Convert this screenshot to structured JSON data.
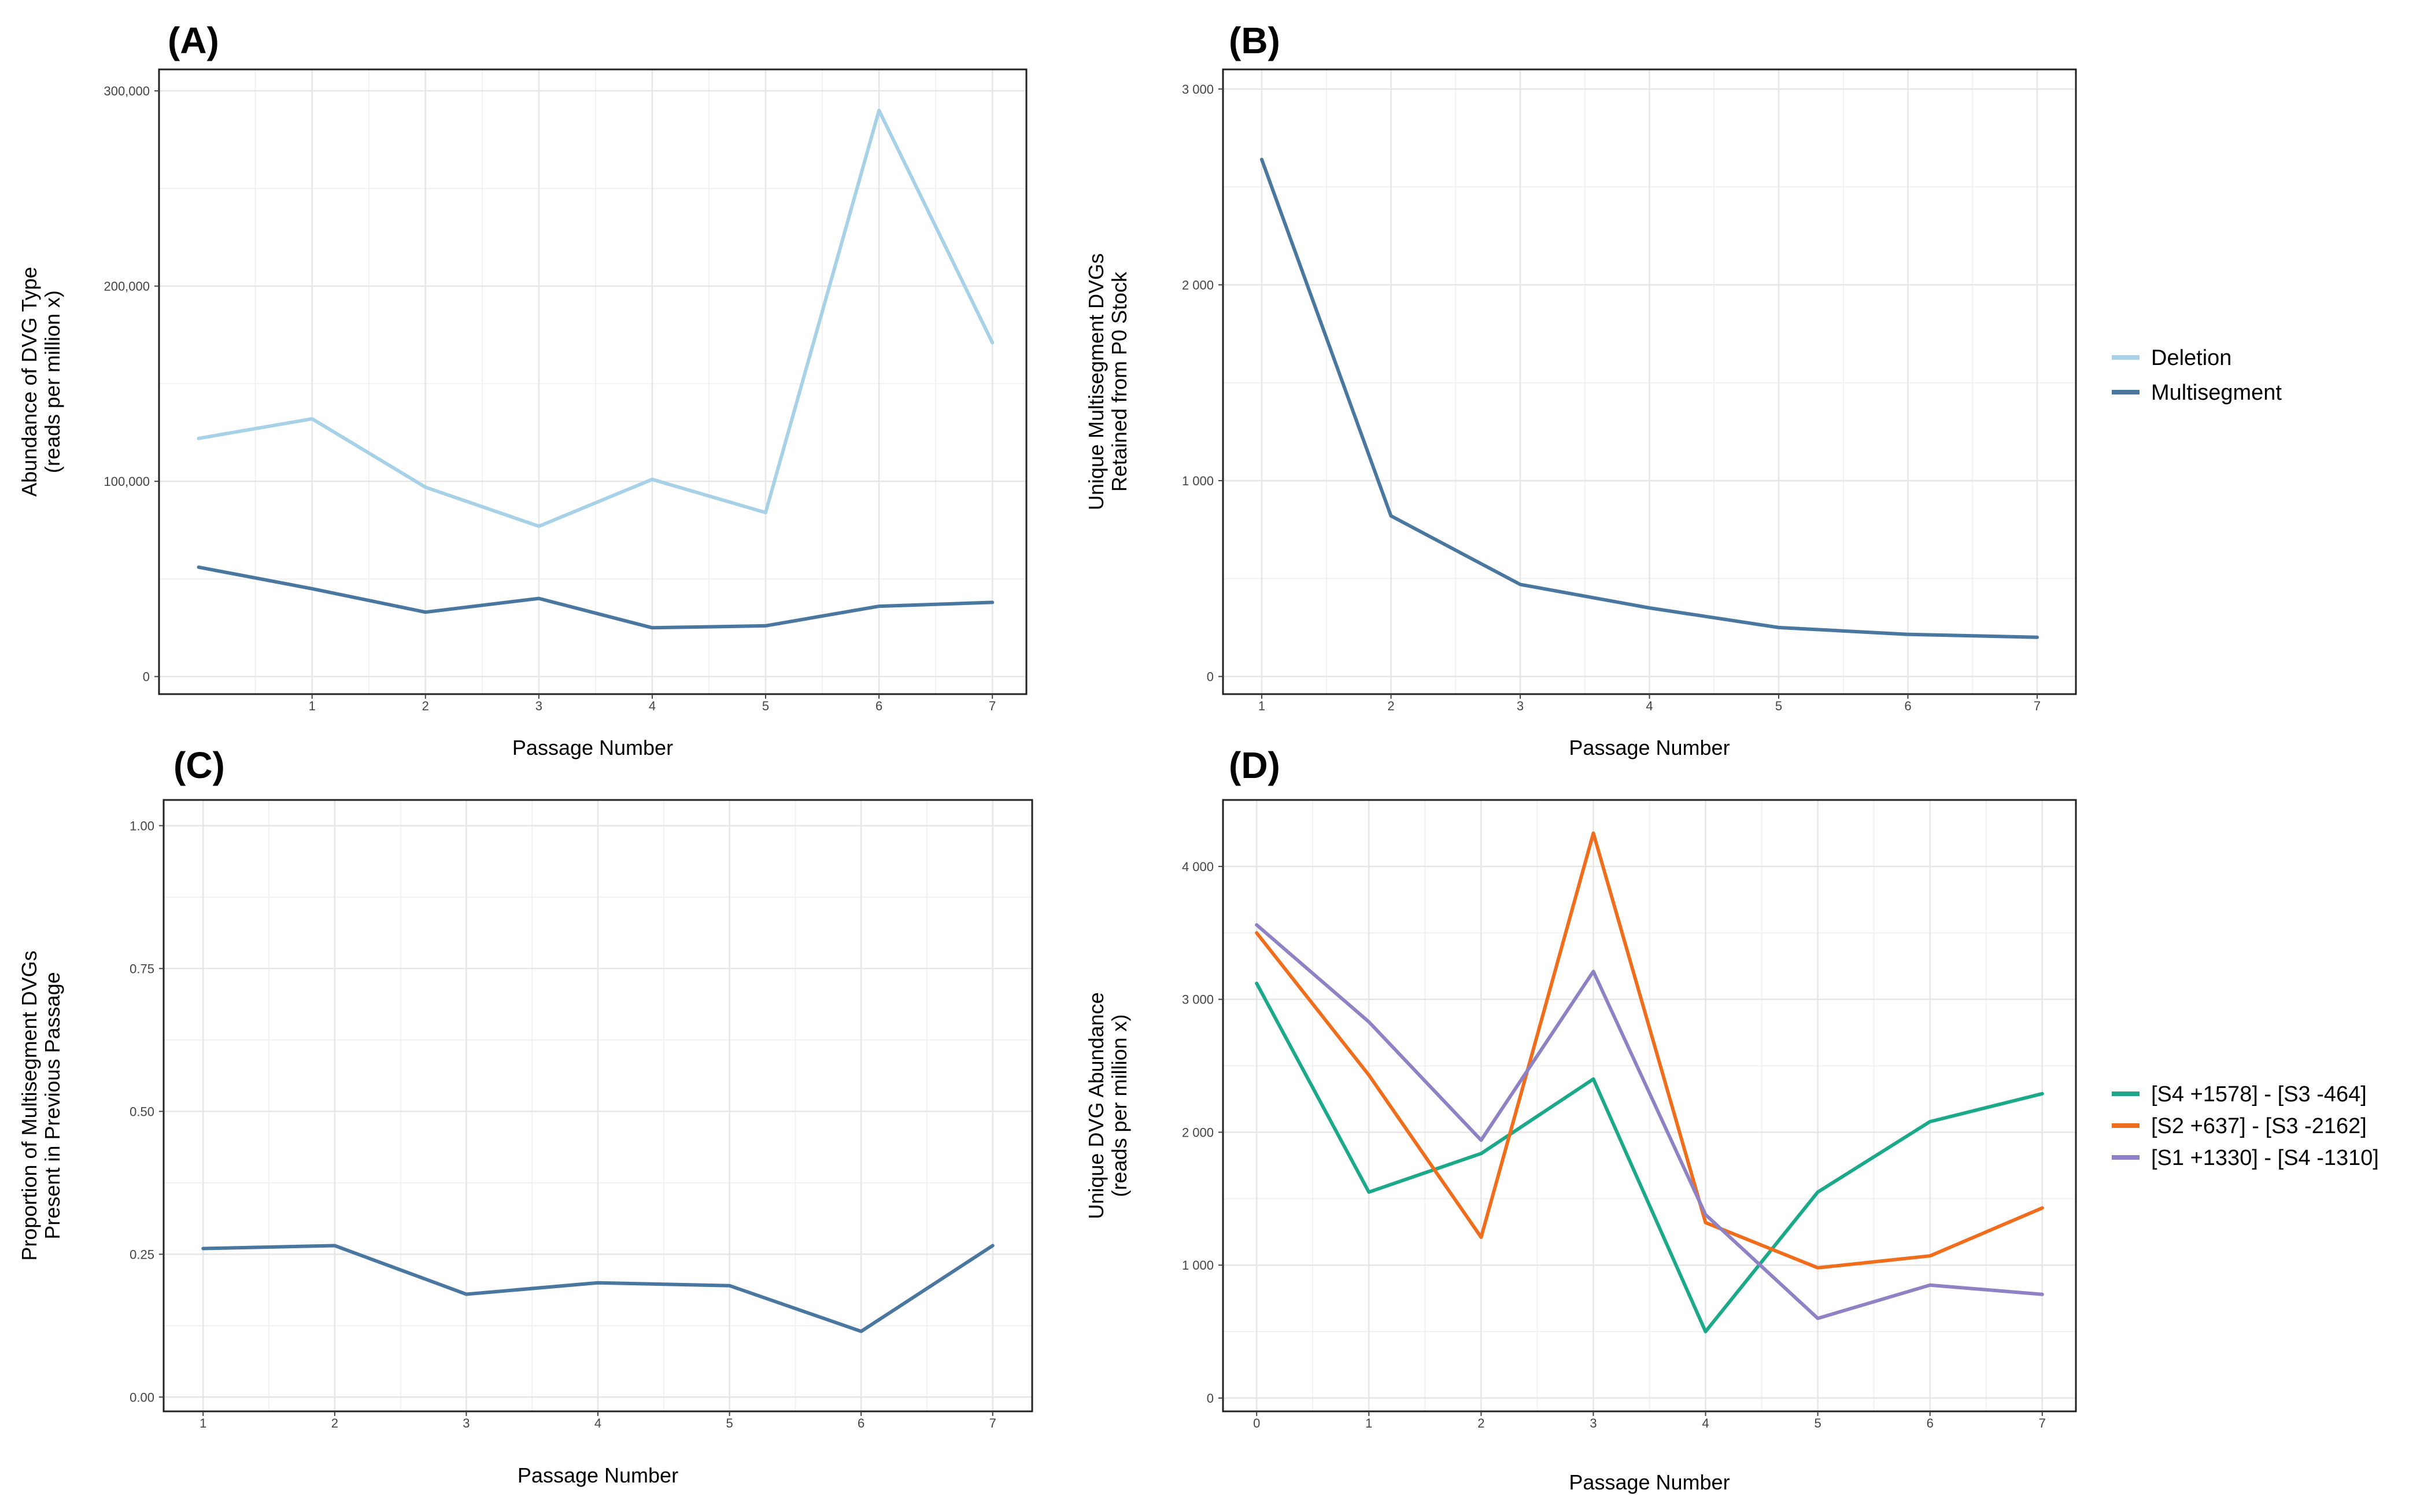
{
  "chart_data": [
    {
      "id": "A",
      "panel_label": "(A)",
      "type": "line",
      "xlabel": "Passage Number",
      "ylabel_lines": [
        "Abundance of DVG Type",
        "(reads per million x)"
      ],
      "x": [
        0,
        1,
        2,
        3,
        4,
        5,
        6,
        7
      ],
      "xticks": [
        1,
        2,
        3,
        4,
        5,
        6,
        7
      ],
      "xlim": [
        -0.35,
        7.3
      ],
      "yticks": [
        0,
        100000,
        200000,
        300000
      ],
      "ytick_labels": [
        "0",
        "100,000",
        "200,000",
        "300,000"
      ],
      "ylim": [
        -9000,
        311000
      ],
      "series": [
        {
          "name": "Deletion",
          "color": "#a6d1e7",
          "values": [
            122000,
            132000,
            97000,
            77000,
            101000,
            84000,
            290000,
            171000
          ]
        },
        {
          "name": "Multisegment",
          "color": "#4a77a0",
          "values": [
            56000,
            45000,
            33000,
            40000,
            25000,
            26000,
            36000,
            38000
          ]
        }
      ]
    },
    {
      "id": "B",
      "panel_label": "(B)",
      "type": "line",
      "xlabel": "Passage Number",
      "ylabel_lines": [
        "Unique Multisegment DVGs",
        "Retained from P0 Stock"
      ],
      "x": [
        1,
        2,
        3,
        4,
        5,
        6,
        7
      ],
      "xticks": [
        1,
        2,
        3,
        4,
        5,
        6,
        7
      ],
      "xlim": [
        0.7,
        7.3
      ],
      "yticks": [
        0,
        1000,
        2000,
        3000
      ],
      "ytick_labels": [
        "0",
        "1 000",
        "2 000",
        "3 000"
      ],
      "ylim": [
        -90,
        3100
      ],
      "series": [
        {
          "name": "Multisegment",
          "color": "#4a77a0",
          "values": [
            2640,
            820,
            470,
            350,
            250,
            215,
            200
          ]
        }
      ]
    },
    {
      "id": "C",
      "panel_label": "(C)",
      "type": "line",
      "xlabel": "Passage Number",
      "ylabel_lines": [
        "Proportion of Multisegment DVGs",
        "Present in Previous Passage"
      ],
      "x": [
        1,
        2,
        3,
        4,
        5,
        6,
        7
      ],
      "xticks": [
        1,
        2,
        3,
        4,
        5,
        6,
        7
      ],
      "xlim": [
        0.7,
        7.3
      ],
      "yticks": [
        0,
        0.25,
        0.5,
        0.75,
        1.0
      ],
      "ytick_labels": [
        "0.00",
        "0.25",
        "0.50",
        "0.75",
        "1.00"
      ],
      "ylim": [
        -0.025,
        1.045
      ],
      "series": [
        {
          "name": "Multisegment",
          "color": "#4a77a0",
          "values": [
            0.26,
            0.265,
            0.18,
            0.2,
            0.195,
            0.115,
            0.265
          ]
        }
      ]
    },
    {
      "id": "D",
      "panel_label": "(D)",
      "type": "line",
      "xlabel": "Passage Number",
      "ylabel_lines": [
        "Unique DVG Abundance",
        "(reads per million x)"
      ],
      "x": [
        0,
        1,
        2,
        3,
        4,
        5,
        6,
        7
      ],
      "xticks": [
        0,
        1,
        2,
        3,
        4,
        5,
        6,
        7
      ],
      "xlim": [
        -0.3,
        7.3
      ],
      "yticks": [
        0,
        1000,
        2000,
        3000,
        4000
      ],
      "ytick_labels": [
        "0",
        "1 000",
        "2 000",
        "3 000",
        "4 000"
      ],
      "ylim": [
        -100,
        4500
      ],
      "series": [
        {
          "name": "[S4 +1578] - [S3 -464]",
          "color": "#1ba98a",
          "values": [
            3120,
            1550,
            1840,
            2400,
            500,
            1550,
            2080,
            2290
          ]
        },
        {
          "name": "[S2 +637] - [S3 -2162]",
          "color": "#f06d1c",
          "values": [
            3500,
            2430,
            1210,
            4250,
            1320,
            980,
            1070,
            1430
          ]
        },
        {
          "name": "[S1 +1330] - [S4 -1310]",
          "color": "#8e81c4",
          "values": [
            3560,
            2830,
            1940,
            3210,
            1380,
            600,
            850,
            780
          ]
        }
      ]
    }
  ],
  "legends": [
    {
      "entries": [
        {
          "label": "Deletion",
          "color": "#a6d1e7"
        },
        {
          "label": "Multisegment",
          "color": "#4a77a0"
        }
      ]
    },
    {
      "entries": [
        {
          "label": "[S4 +1578] - [S3 -464]",
          "color": "#1ba98a"
        },
        {
          "label": "[S2 +637] - [S3 -2162]",
          "color": "#f06d1c"
        },
        {
          "label": "[S1 +1330] - [S4 -1310]",
          "color": "#8e81c4"
        }
      ]
    }
  ]
}
